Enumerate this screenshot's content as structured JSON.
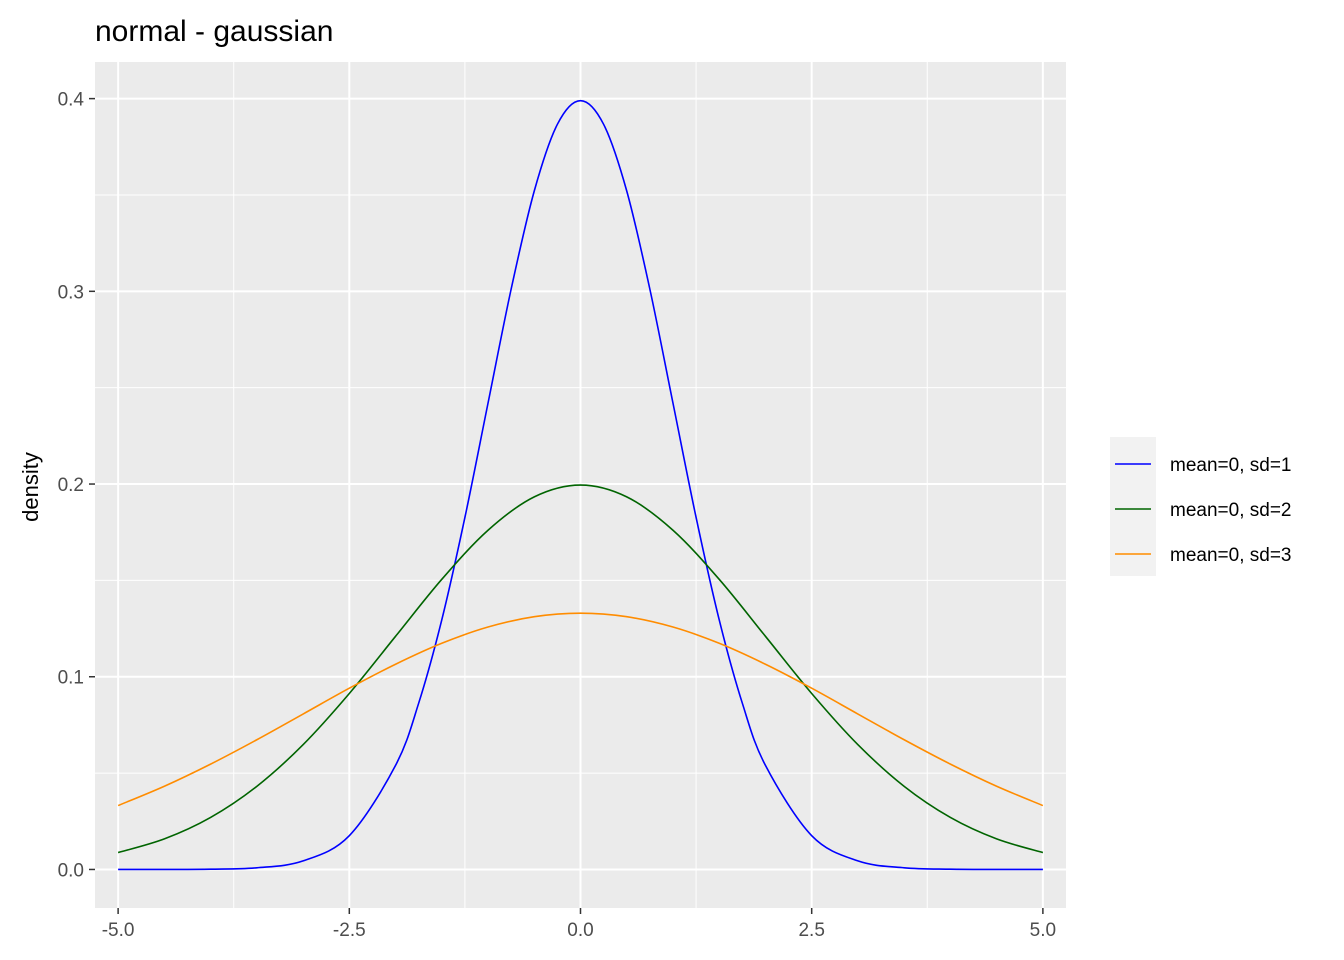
{
  "chart_data": {
    "type": "line",
    "title": "normal - gaussian",
    "xlabel": "",
    "ylabel": "density",
    "xlim": [
      -5.25,
      5.25
    ],
    "ylim": [
      -0.02,
      0.419
    ],
    "x_ticks": [
      -5.0,
      -2.5,
      0.0,
      2.5,
      5.0
    ],
    "x_tick_labels": [
      "-5.0",
      "-2.5",
      "0.0",
      "2.5",
      "5.0"
    ],
    "y_ticks": [
      0.0,
      0.1,
      0.2,
      0.3,
      0.4
    ],
    "y_tick_labels": [
      "0.0",
      "0.1",
      "0.2",
      "0.3",
      "0.4"
    ],
    "grid": true,
    "legend_position": "right",
    "panel_color": "#ebebeb",
    "series": [
      {
        "name": "mean=0, sd=1",
        "color": "#0000ff",
        "x": [
          -5,
          -4.5,
          -4,
          -3.5,
          -3,
          -2.5,
          -2,
          -1.75,
          -1.5,
          -1.25,
          -1,
          -0.75,
          -0.5,
          -0.25,
          0,
          0.25,
          0.5,
          0.75,
          1,
          1.25,
          1.5,
          1.75,
          2,
          2.5,
          3,
          3.5,
          4,
          4.5,
          5
        ],
        "y": [
          1.5e-06,
          1.6e-05,
          0.000134,
          0.000873,
          0.004432,
          0.017528,
          0.053991,
          0.086277,
          0.129518,
          0.182649,
          0.241971,
          0.301137,
          0.352065,
          0.386668,
          0.398942,
          0.386668,
          0.352065,
          0.301137,
          0.241971,
          0.182649,
          0.129518,
          0.086277,
          0.053991,
          0.017528,
          0.004432,
          0.000873,
          0.000134,
          1.6e-05,
          1.5e-06
        ]
      },
      {
        "name": "mean=0, sd=2",
        "color": "#006400",
        "x": [
          -5,
          -4.5,
          -4,
          -3.5,
          -3,
          -2.5,
          -2,
          -1.5,
          -1,
          -0.5,
          0,
          0.5,
          1,
          1.5,
          2,
          2.5,
          3,
          3.5,
          4,
          4.5,
          5
        ],
        "y": [
          0.008764,
          0.015864,
          0.026995,
          0.043138,
          0.064759,
          0.091325,
          0.120985,
          0.150569,
          0.176033,
          0.193334,
          0.199471,
          0.193334,
          0.176033,
          0.150569,
          0.120985,
          0.091325,
          0.064759,
          0.043138,
          0.026995,
          0.015864,
          0.008764
        ]
      },
      {
        "name": "mean=0, sd=3",
        "color": "#ff8c00",
        "x": [
          -5,
          -4.5,
          -4,
          -3.5,
          -3,
          -2.5,
          -2,
          -1.5,
          -1,
          -0.5,
          0,
          0.5,
          1,
          1.5,
          2,
          2.5,
          3,
          3.5,
          4,
          4.5,
          5
        ],
        "y": [
          0.033159,
          0.043185,
          0.05467,
          0.06731,
          0.080657,
          0.094049,
          0.106483,
          0.117355,
          0.125794,
          0.131148,
          0.132981,
          0.131148,
          0.125794,
          0.117355,
          0.106483,
          0.094049,
          0.080657,
          0.06731,
          0.05467,
          0.043185,
          0.033159
        ]
      }
    ]
  }
}
